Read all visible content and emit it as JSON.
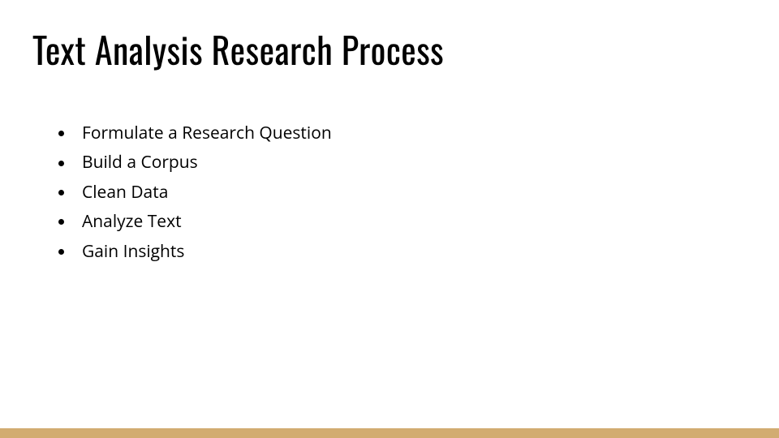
{
  "slide": {
    "title": "Text Analysis Research Process",
    "title_fontsize": 44,
    "title_color": "#000000",
    "title_font": "Oswald, Arial Narrow, sans-serif",
    "bullets": [
      "Formulate a Research Question",
      "Build a Corpus",
      "Clean Data",
      "Analyze Text",
      "Gain Insights"
    ],
    "bullet_fontsize": 21,
    "bullet_color": "#000000",
    "bullet_marker_color": "#000000",
    "background_color": "#ffffff",
    "accent_bar_color": "#d2ac71",
    "accent_bar_height": 12
  }
}
